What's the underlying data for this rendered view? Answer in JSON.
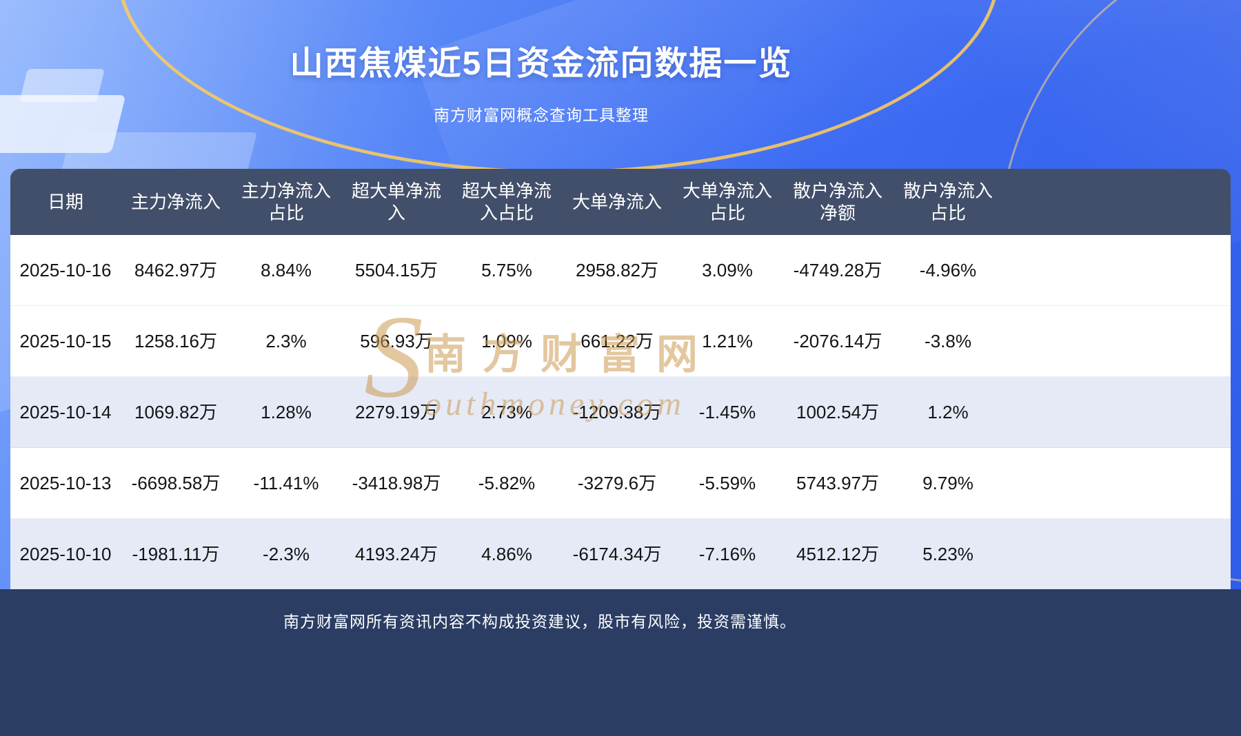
{
  "header": {
    "title": "山西焦煤近5日资金流向数据一览",
    "subtitle": "南方财富网概念查询工具整理"
  },
  "table": {
    "header_labels": [
      "日期",
      "主力净流入",
      "主力净流入\n占比",
      "超大单净流\n入",
      "超大单净流\n入占比",
      "大单净流入",
      "大单净流入\n占比",
      "散户净流入\n净额",
      "散户净流入\n占比"
    ]
  },
  "chart_data": {
    "type": "table",
    "title": "山西焦煤近5日资金流向数据一览",
    "columns": [
      "日期",
      "主力净流入",
      "主力净流入占比",
      "超大单净流入",
      "超大单净流入占比",
      "大单净流入",
      "大单净流入占比",
      "散户净流入净额",
      "散户净流入占比"
    ],
    "rows": [
      [
        "2025-10-16",
        "8462.97万",
        "8.84%",
        "5504.15万",
        "5.75%",
        "2958.82万",
        "3.09%",
        "-4749.28万",
        "-4.96%"
      ],
      [
        "2025-10-15",
        "1258.16万",
        "2.3%",
        "596.93万",
        "1.09%",
        "661.22万",
        "1.21%",
        "-2076.14万",
        "-3.8%"
      ],
      [
        "2025-10-14",
        "1069.82万",
        "1.28%",
        "2279.19万",
        "2.73%",
        "-1209.38万",
        "-1.45%",
        "1002.54万",
        "1.2%"
      ],
      [
        "2025-10-13",
        "-6698.58万",
        "-11.41%",
        "-3418.98万",
        "-5.82%",
        "-3279.6万",
        "-5.59%",
        "5743.97万",
        "9.79%"
      ],
      [
        "2025-10-10",
        "-1981.11万",
        "-2.3%",
        "4193.24万",
        "4.86%",
        "-6174.34万",
        "-7.16%",
        "4512.12万",
        "5.23%"
      ]
    ],
    "colors": {
      "header_bg": "#424f6a",
      "row_bg": "#ffffff",
      "row_alt_bg": "#e5eaf6",
      "footer_bg": "#2b3d63",
      "background_blue": "#3d6cf3",
      "gold_arc": "#fccb5c",
      "watermark_gold": "#cd9a52"
    }
  },
  "watermark": {
    "initial": "S",
    "brand_cn": "南方财富网",
    "brand_en": "outhmoney.com"
  },
  "footer": {
    "disclaimer": "南方财富网所有资讯内容不构成投资建议，股市有风险，投资需谨慎。"
  }
}
